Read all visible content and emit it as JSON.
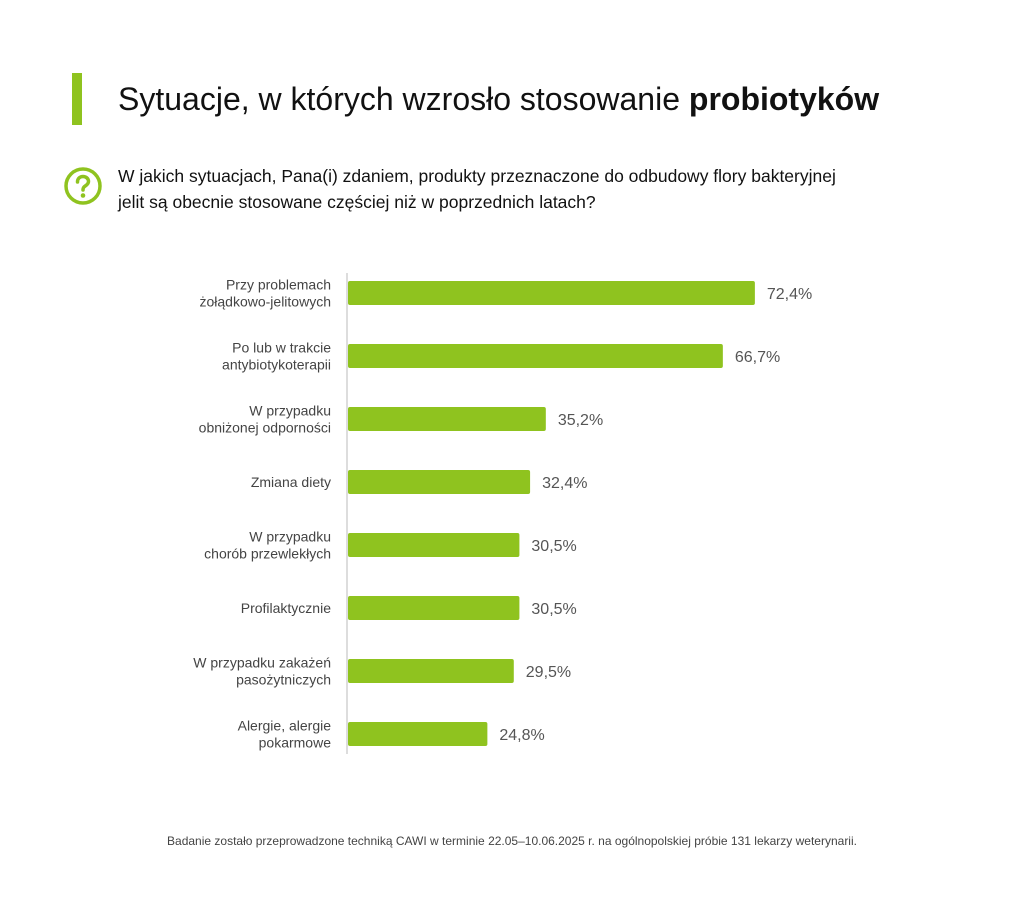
{
  "header": {
    "title_regular": "Sytuacje, w których wzrosło stosowanie",
    "title_bold": "probiotyków",
    "question": "W jakich sytuacjach, Pana(i) zdaniem, produkty przeznaczone do odbudowy flory bakteryjnej jelit są obecnie stosowane częściej niż w poprzednich latach?"
  },
  "colors": {
    "accent": "#8fc31f",
    "bar": "#8fc31f",
    "axis": "#bbbbbb"
  },
  "icons": {
    "question": "question-circle-icon"
  },
  "chart_data": {
    "type": "bar",
    "orientation": "horizontal",
    "categories": [
      [
        "Przy problemach",
        "żołądkowo-jelitowych"
      ],
      [
        "Po lub w trakcie",
        "antybiotykoterapii"
      ],
      [
        "W przypadku",
        "obniżonej odporności"
      ],
      [
        "Zmiana diety"
      ],
      [
        "W przypadku",
        "chorób przewlekłych"
      ],
      [
        "Profilaktycznie"
      ],
      [
        "W przypadku zakażeń",
        "pasożytniczych"
      ],
      [
        "Alergie, alergie",
        "pokarmowe"
      ]
    ],
    "values": [
      72.4,
      66.7,
      35.2,
      32.4,
      30.5,
      30.5,
      29.5,
      24.8
    ],
    "value_labels": [
      "72,4%",
      "66,7%",
      "35,2%",
      "32,4%",
      "30,5%",
      "30,5%",
      "29,5%",
      "24,8%"
    ],
    "xlim": [
      0,
      100
    ],
    "grid": false,
    "legend": "none"
  },
  "footnote": "Badanie zostało przeprowadzone techniką CAWI w terminie 22.05–10.06.2025 r. na ogólnopolskiej próbie 131 lekarzy weterynarii."
}
